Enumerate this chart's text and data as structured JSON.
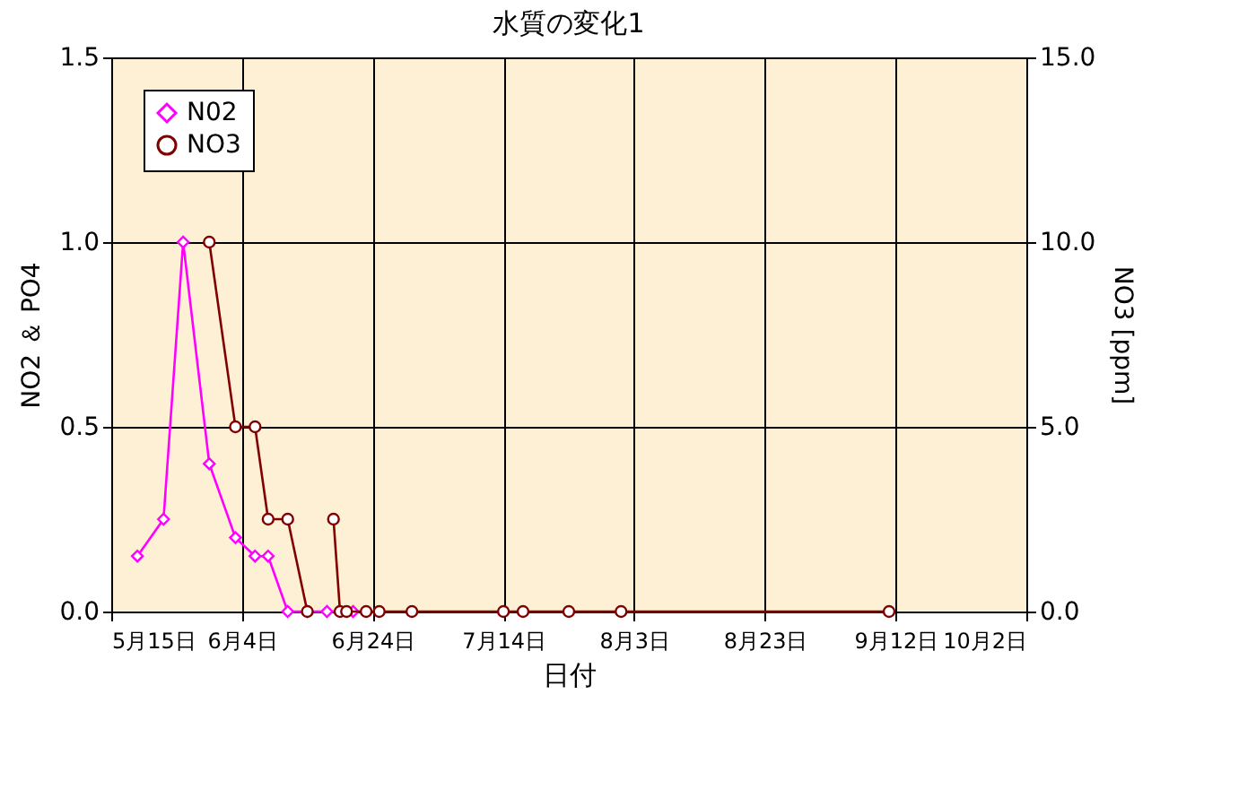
{
  "chart_data": {
    "type": "line",
    "title": "水質の変化1",
    "xlabel": "日付",
    "ylabel": "NO2 ＆ PO4",
    "y2label": "NO3 [ppm]",
    "xlim": [
      "--05-15",
      "--10-02"
    ],
    "xticks": [
      {
        "value": "--05-15",
        "label": "5月15日"
      },
      {
        "value": "--06-04",
        "label": "6月4日"
      },
      {
        "value": "--06-24",
        "label": "6月24日"
      },
      {
        "value": "--07-14",
        "label": "7月14日"
      },
      {
        "value": "--08-03",
        "label": "8月3日"
      },
      {
        "value": "--08-23",
        "label": "8月23日"
      },
      {
        "value": "--09-12",
        "label": "9月12日"
      },
      {
        "value": "--10-02",
        "label": "10月2日"
      }
    ],
    "ylim": [
      0,
      1.5
    ],
    "yticks": [
      {
        "value": 0,
        "label": "0.0"
      },
      {
        "value": 0.5,
        "label": "0.5"
      },
      {
        "value": 1,
        "label": "1.0"
      },
      {
        "value": 1.5,
        "label": "1.5"
      }
    ],
    "y2lim": [
      0,
      15
    ],
    "y2ticks": [
      {
        "value": 0,
        "label": "0.0"
      },
      {
        "value": 5,
        "label": "5.0"
      },
      {
        "value": 10,
        "label": "10.0"
      },
      {
        "value": 15,
        "label": "15.0"
      }
    ],
    "grid": true,
    "legend": "top left",
    "series": [
      {
        "name": "N02",
        "color": "#ff00ff",
        "marker": "diamond",
        "x": [
          "--05-19",
          "--05-23",
          "--05-26",
          "--05-30",
          "--06-03",
          "--06-06",
          "--06-08",
          "--06-11",
          "--06-14",
          "--06-17",
          "--06-21"
        ],
        "values": [
          0.15,
          0.25,
          1.0,
          0.4,
          0.2,
          0.15,
          0.15,
          0,
          0,
          0,
          0
        ]
      },
      {
        "name": "NO3",
        "color": "#800000",
        "marker": "circle",
        "axis": "y2",
        "x": [
          "--05-30",
          "--06-03",
          "--06-06",
          "--06-08",
          "--06-11",
          "--06-14",
          "--06-16",
          "--06-18",
          "--06-19",
          "--06-20",
          "--06-23",
          "--06-25",
          "--06-30",
          "--07-14",
          "--07-17",
          "--07-24",
          "--08-01",
          "--09-11"
        ],
        "values": [
          10,
          5,
          5,
          2.5,
          2.5,
          0,
          null,
          2.5,
          0,
          0,
          0,
          0,
          0,
          0,
          0,
          0,
          0,
          0
        ]
      }
    ]
  }
}
